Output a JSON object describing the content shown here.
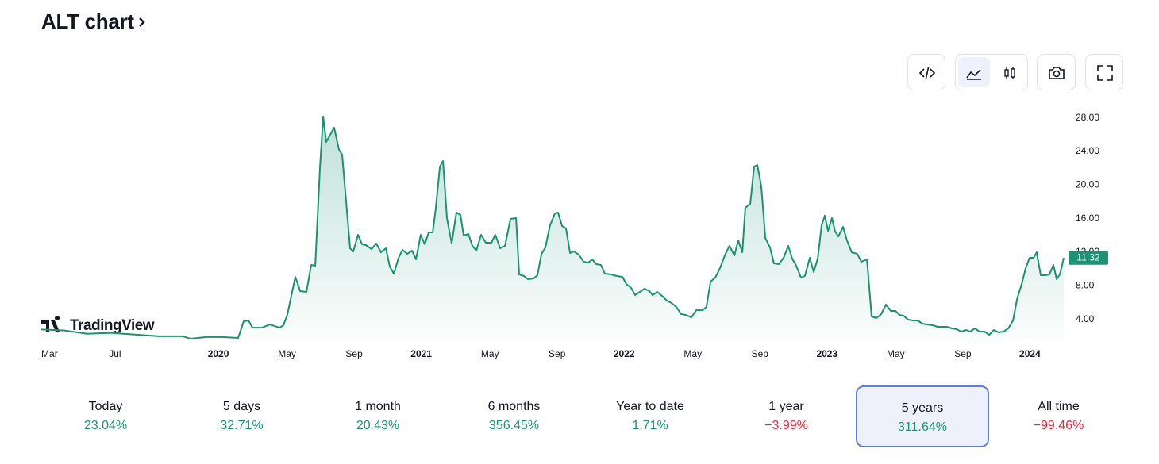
{
  "title": "ALT chart",
  "watermark": "TradingView",
  "chart_data": {
    "type": "area",
    "color": "#1a9373",
    "x": [
      1.53,
      2.85,
      4.25,
      5.66,
      7.07,
      8.48,
      9.89,
      10.36,
      11.3,
      12.23,
      13.17,
      13.5,
      13.78,
      14.02,
      14.58,
      15.05,
      15.62,
      15.85,
      16.08,
      16.55,
      16.84,
      17.21,
      17.49,
      17.73,
      18.01,
      18.2,
      18.38,
      18.85,
      19.14,
      19.32,
      19.79,
      19.98,
      20.26,
      20.5,
      20.73,
      21.06,
      21.34,
      21.62,
      21.91,
      22.14,
      22.38,
      22.66,
      22.89,
      23.17,
      23.46,
      23.69,
      23.97,
      24.21,
      24.44,
      24.68,
      24.86,
      25.1,
      25.29,
      25.52,
      25.8,
      26.08,
      26.32,
      26.51,
      26.79,
      27.02,
      27.26,
      27.54,
      27.82,
      28.15,
      28.38,
      28.67,
      28.95,
      29.28,
      29.61,
      29.79,
      30.08,
      30.31,
      30.64,
      30.87,
      31.11,
      31.34,
      31.62,
      31.91,
      32.09,
      32.33,
      32.56,
      32.8,
      33.03,
      33.32,
      33.6,
      33.88,
      34.11,
      34.35,
      34.63,
      34.86,
      35.24,
      35.57,
      35.9,
      36.13,
      36.41,
      36.65,
      36.93,
      37.21,
      37.49,
      37.68,
      37.96,
      38.24,
      38.53,
      38.81,
      39.09,
      39.37,
      39.65,
      39.98,
      40.26,
      40.64,
      40.87,
      41.11,
      41.39,
      41.67,
      41.95,
      42.23,
      42.52,
      42.75,
      42.99,
      43.17,
      43.46,
      43.69,
      43.88,
      44.11,
      44.35,
      44.63,
      44.86,
      45.15,
      45.43,
      45.71,
      45.94,
      46.18,
      46.46,
      46.69,
      46.98,
      47.21,
      47.45,
      47.68,
      47.87,
      48.06,
      48.29,
      48.48,
      48.67,
      48.95,
      49.18,
      49.46,
      49.79,
      50.03,
      50.36,
      50.64,
      50.92,
      51.2,
      51.49,
      51.77,
      52.05,
      52.28,
      52.52,
      52.8,
      53.08,
      53.36,
      53.64,
      53.93,
      54.25,
      54.54,
      54.82,
      55.1,
      55.38,
      55.66,
      55.94,
      56.23,
      56.46,
      56.74,
      57.02,
      57.31,
      57.59,
      57.87,
      58.15,
      58.44,
      58.72,
      59.0,
      59.24,
      59.51,
      59.75,
      59.98,
      60.22,
      60.4,
      60.64,
      60.92,
      61.15,
      61.39,
      61.58,
      61.77,
      62.0
    ],
    "values": [
      2.8,
      2.7,
      2.3,
      2.4,
      2.2,
      2.0,
      2.0,
      1.7,
      1.9,
      1.9,
      1.8,
      3.78,
      3.88,
      3.02,
      3.02,
      3.4,
      3.02,
      3.31,
      4.54,
      9.07,
      7.37,
      7.28,
      10.49,
      10.4,
      22.02,
      28.17,
      25.14,
      26.84,
      24.2,
      23.63,
      12.48,
      12.1,
      14.08,
      12.95,
      12.85,
      12.38,
      13.04,
      12.0,
      12.48,
      10.3,
      9.45,
      11.34,
      12.29,
      11.81,
      12.19,
      11.15,
      14.08,
      12.95,
      14.37,
      14.37,
      17.2,
      22.21,
      22.87,
      16.07,
      13.04,
      16.73,
      16.45,
      13.99,
      14.18,
      12.76,
      12.19,
      14.08,
      13.14,
      13.14,
      14.08,
      12.48,
      12.76,
      15.97,
      16.07,
      9.36,
      9.17,
      8.79,
      8.88,
      9.26,
      11.81,
      12.57,
      15.22,
      16.64,
      16.73,
      15.12,
      14.84,
      11.91,
      12.1,
      11.72,
      10.87,
      10.78,
      11.15,
      10.59,
      10.49,
      9.45,
      9.36,
      9.17,
      9.07,
      8.22,
      7.75,
      6.9,
      7.28,
      7.66,
      7.37,
      6.9,
      7.28,
      6.81,
      6.24,
      5.95,
      5.48,
      4.63,
      4.54,
      4.25,
      5.1,
      5.1,
      5.48,
      8.51,
      8.98,
      10.12,
      11.62,
      12.76,
      11.62,
      13.42,
      12.0,
      17.3,
      17.77,
      22.21,
      22.4,
      19.85,
      13.7,
      12.57,
      10.68,
      10.59,
      11.34,
      12.76,
      11.25,
      10.4,
      8.98,
      9.17,
      11.34,
      9.64,
      11.25,
      15.22,
      16.35,
      14.56,
      16.07,
      14.46,
      13.89,
      15.03,
      13.42,
      12.0,
      11.81,
      10.87,
      11.15,
      4.35,
      4.16,
      4.63,
      5.77,
      5.01,
      5.01,
      4.54,
      4.44,
      3.97,
      3.88,
      3.88,
      3.5,
      3.4,
      3.31,
      3.12,
      3.12,
      3.12,
      2.93,
      2.84,
      2.55,
      2.74,
      2.55,
      2.93,
      2.55,
      2.55,
      2.17,
      2.74,
      2.46,
      2.55,
      2.93,
      3.88,
      6.43,
      8.22,
      10.12,
      11.34,
      11.34,
      12.0,
      9.26,
      9.26,
      9.36,
      10.49,
      8.79,
      9.36,
      11.32
    ],
    "xlim": [
      1.5,
      62.0
    ],
    "xticks": [
      {
        "value": 2,
        "label": "Mar"
      },
      {
        "value": 6,
        "label": "Jul"
      },
      {
        "value": 12,
        "label": "2020"
      },
      {
        "value": 16,
        "label": "May"
      },
      {
        "value": 20,
        "label": "Sep"
      },
      {
        "value": 24,
        "label": "2021"
      },
      {
        "value": 28,
        "label": "May"
      },
      {
        "value": 32,
        "label": "Sep"
      },
      {
        "value": 36,
        "label": "2022"
      },
      {
        "value": 40,
        "label": "May"
      },
      {
        "value": 44,
        "label": "Sep"
      },
      {
        "value": 48,
        "label": "2023"
      },
      {
        "value": 52,
        "label": "May"
      },
      {
        "value": 56,
        "label": "Sep"
      },
      {
        "value": 60,
        "label": "2024"
      }
    ],
    "ylim": [
      1.6,
      29.8
    ],
    "yticks": [
      {
        "value": 4,
        "label": "4.00"
      },
      {
        "value": 8,
        "label": "8.00"
      },
      {
        "value": 12,
        "label": "12.00"
      },
      {
        "value": 16,
        "label": "16.00"
      },
      {
        "value": 20,
        "label": "20.00"
      },
      {
        "value": 24,
        "label": "24.00"
      },
      {
        "value": 28,
        "label": "28.00"
      }
    ]
  },
  "performance": [
    {
      "label": "Today",
      "change": "23.04%",
      "color": "#1a9373"
    },
    {
      "label": "5 days",
      "change": "32.71%",
      "color": "#1a9373"
    },
    {
      "label": "1 month",
      "change": "20.43%",
      "color": "#1a9373"
    },
    {
      "label": "6 months",
      "change": "356.45%",
      "color": "#1a9373"
    },
    {
      "label": "Year to date",
      "change": "1.71%",
      "color": "#1a9373"
    },
    {
      "label": "1 year",
      "change": "−3.99%",
      "color": "#e5283f"
    },
    {
      "label": "5 years",
      "change": "311.64%",
      "color": "#1a9373"
    },
    {
      "label": "All time",
      "change": "−99.46%",
      "color": "#e5283f"
    }
  ],
  "selected": 6
}
